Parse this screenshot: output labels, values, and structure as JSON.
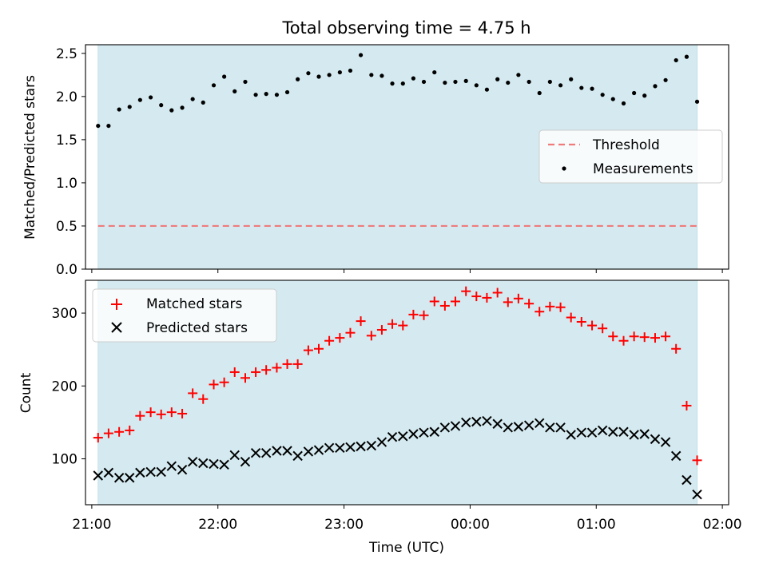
{
  "figure": {
    "title": "Total observing time = 4.75 h"
  },
  "colors": {
    "shade": "#d4eaf0",
    "threshold": "#ef7b7b",
    "measurements": "#000000",
    "matched": "#ff0000",
    "predicted": "#000000"
  },
  "chart_data": [
    {
      "type": "scatter",
      "ylabel": "Matched/Predicted stars",
      "ylim": [
        0,
        2.6
      ],
      "yticks": [
        0.0,
        0.5,
        1.0,
        1.5,
        2.0,
        2.5
      ],
      "ytick_labels": [
        "0.0",
        "0.5",
        "1.0",
        "1.5",
        "2.0",
        "2.5"
      ],
      "xlim_hours": [
        20.95,
        26.05
      ],
      "shaded_span_hours": [
        21.05,
        25.8
      ],
      "legend": {
        "placement": "center-right",
        "entries": [
          "Threshold",
          "Measurements"
        ]
      },
      "threshold": {
        "name": "Threshold",
        "value": 0.5,
        "style": "dashed"
      },
      "series": [
        {
          "name": "Measurements",
          "marker": "dot",
          "x_hours": [
            21.05,
            21.133,
            21.217,
            21.3,
            21.383,
            21.467,
            21.55,
            21.633,
            21.717,
            21.8,
            21.883,
            21.967,
            22.05,
            22.133,
            22.217,
            22.3,
            22.383,
            22.467,
            22.55,
            22.633,
            22.717,
            22.8,
            22.883,
            22.967,
            23.05,
            23.133,
            23.217,
            23.3,
            23.383,
            23.467,
            23.55,
            23.633,
            23.717,
            23.8,
            23.883,
            23.967,
            24.05,
            24.133,
            24.217,
            24.3,
            24.383,
            24.467,
            24.55,
            24.633,
            24.717,
            24.8,
            24.883,
            24.967,
            25.05,
            25.133,
            25.217,
            25.3,
            25.383,
            25.467,
            25.55,
            25.633,
            25.717,
            25.8
          ],
          "values": [
            1.66,
            1.66,
            1.85,
            1.88,
            1.96,
            1.99,
            1.9,
            1.84,
            1.87,
            1.97,
            1.93,
            2.13,
            2.23,
            2.06,
            2.17,
            2.02,
            2.03,
            2.02,
            2.05,
            2.2,
            2.27,
            2.23,
            2.25,
            2.28,
            2.3,
            2.48,
            2.25,
            2.24,
            2.15,
            2.15,
            2.21,
            2.17,
            2.28,
            2.16,
            2.17,
            2.18,
            2.13,
            2.08,
            2.2,
            2.16,
            2.25,
            2.17,
            2.04,
            2.17,
            2.13,
            2.2,
            2.1,
            2.09,
            2.02,
            1.97,
            1.92,
            2.04,
            2.01,
            2.12,
            2.19,
            2.42,
            2.46,
            1.94
          ]
        }
      ]
    },
    {
      "type": "scatter",
      "xlabel": "Time (UTC)",
      "ylabel": "Count",
      "ylim": [
        37,
        345
      ],
      "yticks": [
        100,
        200,
        300
      ],
      "ytick_labels": [
        "100",
        "200",
        "300"
      ],
      "xlim_hours": [
        20.95,
        26.05
      ],
      "xticks_hours": [
        21,
        22,
        23,
        24,
        25,
        26
      ],
      "xtick_labels": [
        "21:00",
        "22:00",
        "23:00",
        "00:00",
        "01:00",
        "02:00"
      ],
      "shaded_span_hours": [
        21.05,
        25.8
      ],
      "legend": {
        "placement": "upper-left",
        "entries": [
          "Matched stars",
          "Predicted stars"
        ]
      },
      "series": [
        {
          "name": "Matched stars",
          "marker": "plus",
          "x_hours": [
            21.05,
            21.133,
            21.217,
            21.3,
            21.383,
            21.467,
            21.55,
            21.633,
            21.717,
            21.8,
            21.883,
            21.967,
            22.05,
            22.133,
            22.217,
            22.3,
            22.383,
            22.467,
            22.55,
            22.633,
            22.717,
            22.8,
            22.883,
            22.967,
            23.05,
            23.133,
            23.217,
            23.3,
            23.383,
            23.467,
            23.55,
            23.633,
            23.717,
            23.8,
            23.883,
            23.967,
            24.05,
            24.133,
            24.217,
            24.3,
            24.383,
            24.467,
            24.55,
            24.633,
            24.717,
            24.8,
            24.883,
            24.967,
            25.05,
            25.133,
            25.217,
            25.3,
            25.383,
            25.467,
            25.55,
            25.633,
            25.717,
            25.8
          ],
          "values": [
            129,
            135,
            137,
            139,
            159,
            164,
            161,
            164,
            162,
            190,
            182,
            202,
            205,
            219,
            211,
            219,
            222,
            225,
            230,
            230,
            249,
            251,
            262,
            266,
            273,
            289,
            269,
            277,
            285,
            283,
            298,
            297,
            316,
            310,
            316,
            330,
            323,
            321,
            328,
            315,
            320,
            313,
            302,
            309,
            308,
            294,
            288,
            283,
            279,
            268,
            262,
            268,
            267,
            266,
            268,
            251,
            173,
            98
          ]
        },
        {
          "name": "Predicted stars",
          "marker": "x",
          "x_hours": [
            21.05,
            21.133,
            21.217,
            21.3,
            21.383,
            21.467,
            21.55,
            21.633,
            21.717,
            21.8,
            21.883,
            21.967,
            22.05,
            22.133,
            22.217,
            22.3,
            22.383,
            22.467,
            22.55,
            22.633,
            22.717,
            22.8,
            22.883,
            22.967,
            23.05,
            23.133,
            23.217,
            23.3,
            23.383,
            23.467,
            23.55,
            23.633,
            23.717,
            23.8,
            23.883,
            23.967,
            24.05,
            24.133,
            24.217,
            24.3,
            24.383,
            24.467,
            24.55,
            24.633,
            24.717,
            24.8,
            24.883,
            24.967,
            25.05,
            25.133,
            25.217,
            25.3,
            25.383,
            25.467,
            25.55,
            25.633,
            25.717,
            25.8
          ],
          "values": [
            77,
            81,
            74,
            74,
            81,
            82,
            82,
            90,
            85,
            96,
            94,
            93,
            92,
            105,
            96,
            108,
            108,
            111,
            111,
            104,
            110,
            112,
            115,
            115,
            116,
            117,
            118,
            123,
            130,
            131,
            134,
            136,
            137,
            143,
            145,
            150,
            151,
            152,
            148,
            143,
            144,
            146,
            149,
            143,
            143,
            133,
            136,
            136,
            139,
            137,
            137,
            133,
            134,
            127,
            123,
            104,
            71,
            51
          ]
        }
      ]
    }
  ]
}
